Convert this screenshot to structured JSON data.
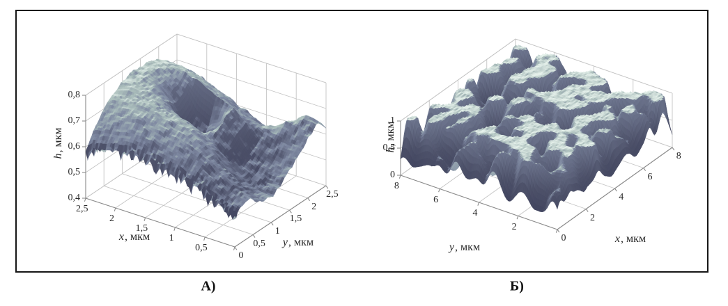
{
  "figure": {
    "caption_a": "А)",
    "caption_b": "Б)",
    "colors": {
      "border": "#161616",
      "grid": "#c4c4c4",
      "axis_line": "#8a8a8a",
      "tick_text": "#2a2a2a",
      "surface_gradient": [
        "#2f3250",
        "#4d5169",
        "#7e88a1",
        "#aabdbb",
        "#e8f3ed"
      ]
    }
  },
  "chart_data": [
    {
      "id": "A",
      "type": "surface3d",
      "caption": "А)",
      "description": "AFM-type surface relief: broad elevated plateau with central depression, rough spiky front edge and low smooth valley at front-right",
      "left_edge_axis": "x",
      "right_edge_axis": "y",
      "x_axis": {
        "var": "x",
        "unit": ", мкм",
        "range_um": [
          0,
          2.5
        ],
        "ticks": [
          "0",
          "0,5",
          "1",
          "1,5",
          "2",
          "2,5"
        ]
      },
      "y_axis": {
        "var": "y",
        "unit": ", мкм",
        "range_um": [
          0,
          2.5
        ],
        "ticks": [
          "0",
          "0,5",
          "1",
          "1,5",
          "2",
          "2,5"
        ]
      },
      "z_axis": {
        "var": "h",
        "unit": ", мкм",
        "range_um": [
          0.4,
          0.8
        ],
        "ticks": [
          "0,4",
          "0,5",
          "0,6",
          "0,7",
          "0,8"
        ]
      },
      "surface": {
        "kind": "measured-grid",
        "grid_rows_along": "x",
        "grid_cols_along": "y",
        "heights_um": [
          [
            0.52,
            0.54,
            0.55,
            0.52,
            0.5,
            0.5,
            0.52,
            0.55,
            0.58,
            0.61,
            0.64,
            0.67,
            0.63
          ],
          [
            0.54,
            0.56,
            0.57,
            0.54,
            0.51,
            0.5,
            0.52,
            0.54,
            0.57,
            0.61,
            0.65,
            0.68,
            0.64
          ],
          [
            0.56,
            0.58,
            0.6,
            0.58,
            0.54,
            0.52,
            0.53,
            0.55,
            0.58,
            0.62,
            0.66,
            0.64,
            0.6
          ],
          [
            0.58,
            0.61,
            0.63,
            0.62,
            0.58,
            0.55,
            0.56,
            0.58,
            0.6,
            0.63,
            0.62,
            0.58,
            0.56
          ],
          [
            0.6,
            0.63,
            0.66,
            0.66,
            0.63,
            0.6,
            0.62,
            0.64,
            0.66,
            0.64,
            0.6,
            0.56,
            0.55
          ],
          [
            0.61,
            0.65,
            0.68,
            0.69,
            0.67,
            0.64,
            0.66,
            0.69,
            0.7,
            0.66,
            0.62,
            0.58,
            0.56
          ],
          [
            0.62,
            0.66,
            0.69,
            0.71,
            0.7,
            0.66,
            0.62,
            0.58,
            0.64,
            0.68,
            0.64,
            0.6,
            0.58
          ],
          [
            0.62,
            0.67,
            0.7,
            0.72,
            0.71,
            0.68,
            0.6,
            0.55,
            0.6,
            0.7,
            0.68,
            0.63,
            0.6
          ],
          [
            0.63,
            0.68,
            0.71,
            0.73,
            0.72,
            0.7,
            0.64,
            0.58,
            0.62,
            0.72,
            0.7,
            0.66,
            0.62
          ],
          [
            0.63,
            0.68,
            0.72,
            0.74,
            0.74,
            0.73,
            0.7,
            0.68,
            0.7,
            0.74,
            0.72,
            0.68,
            0.64
          ],
          [
            0.62,
            0.67,
            0.71,
            0.74,
            0.75,
            0.75,
            0.74,
            0.73,
            0.74,
            0.75,
            0.73,
            0.7,
            0.66
          ],
          [
            0.6,
            0.66,
            0.7,
            0.73,
            0.75,
            0.76,
            0.76,
            0.76,
            0.76,
            0.76,
            0.74,
            0.71,
            0.67
          ],
          [
            0.58,
            0.64,
            0.68,
            0.72,
            0.74,
            0.76,
            0.77,
            0.77,
            0.77,
            0.76,
            0.74,
            0.71,
            0.68
          ]
        ],
        "noise_um": 0.012,
        "front_edge_spikes_um": 0.035,
        "seed": 11
      }
    },
    {
      "id": "B",
      "type": "surface3d",
      "caption": "Б)",
      "description": "Dense quasi-periodic nano-bump relief of uniform rounded peaks over the whole scan field",
      "left_edge_axis": "y",
      "right_edge_axis": "x",
      "x_axis": {
        "var": "x",
        "unit": ", мкм",
        "range_um": [
          0,
          8
        ],
        "ticks": [
          "0",
          "2",
          "4",
          "6",
          "8"
        ]
      },
      "y_axis": {
        "var": "y",
        "unit": ", мкм",
        "range_um": [
          0,
          8
        ],
        "ticks": [
          "0",
          "2",
          "4",
          "6",
          "8"
        ]
      },
      "z_axis": {
        "var": "h",
        "unit": ", мкм",
        "range_um": [
          0,
          1
        ],
        "ticks": [
          "0",
          "0,5",
          "1"
        ]
      },
      "surface": {
        "kind": "bump-lattice",
        "lattice": [
          13,
          13
        ],
        "bump_sigma_um": 0.28,
        "bump_height_um": [
          0.35,
          0.95
        ],
        "base_um": 0.06,
        "noise_um": 0.02,
        "seed": 29
      }
    }
  ]
}
